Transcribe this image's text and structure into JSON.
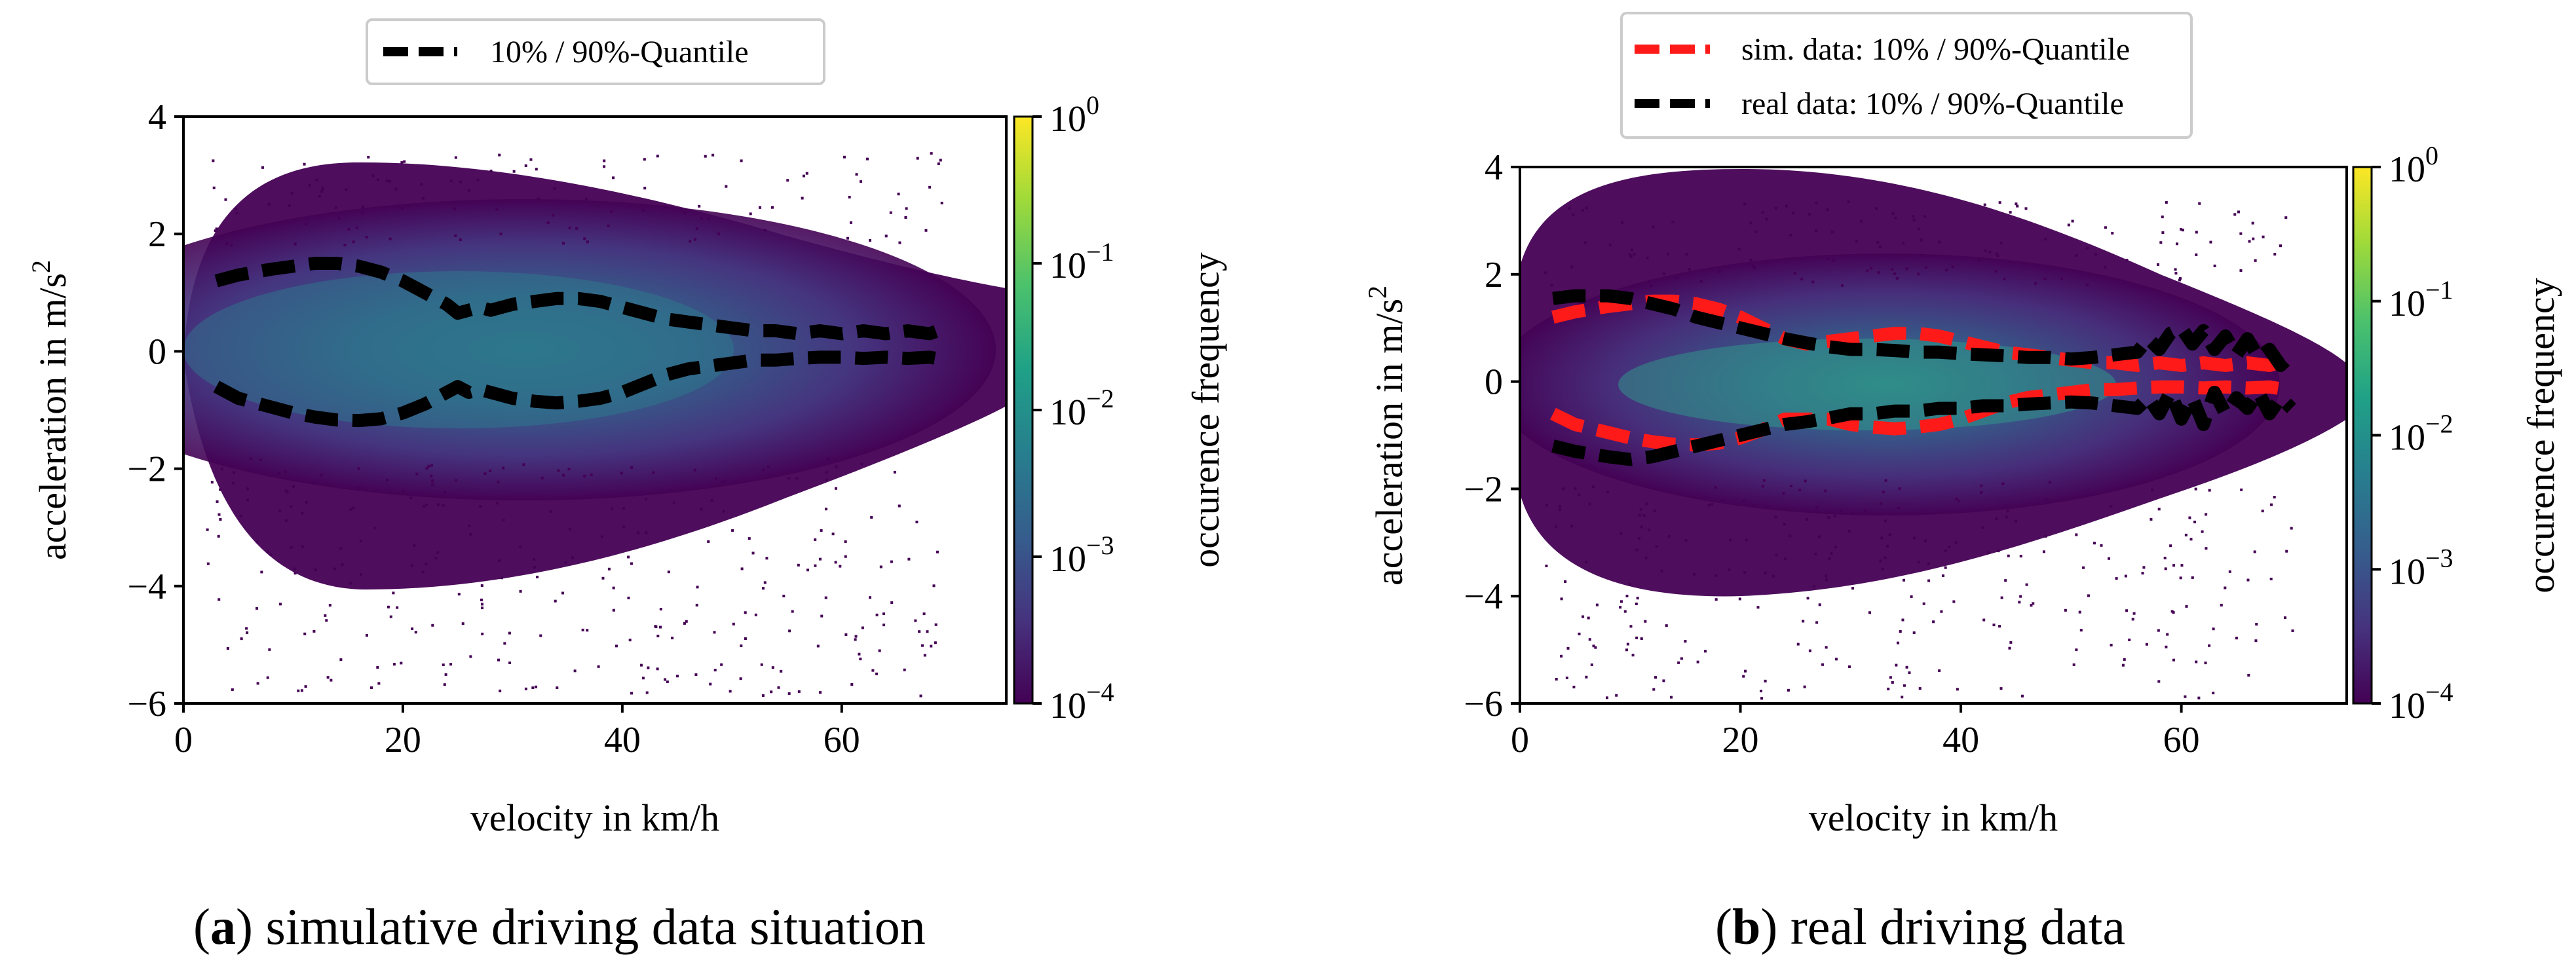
{
  "colors": {
    "background": "#ffffff",
    "quantile_sim": "#000000",
    "quantile_real": "#000000",
    "quantile_sim_red": "#ff1a1a",
    "cmap": [
      "#440154",
      "#46327e",
      "#365c8d",
      "#277f8e",
      "#1fa187",
      "#4ac16d",
      "#a0da39",
      "#fde725"
    ]
  },
  "captions": {
    "a_label": "a",
    "a_text": "simulative driving data situation",
    "b_label": "b",
    "b_text": "real driving data"
  },
  "chart_data": [
    {
      "type": "heatmap",
      "id": "a",
      "xlabel": "velocity in km/h",
      "ylabel": "acceleration in m/s",
      "ylabel_sup": "2",
      "xlim": [
        0,
        75
      ],
      "ylim": [
        -6,
        4
      ],
      "xticks": [
        0,
        20,
        40,
        60
      ],
      "xtick_labels": [
        "0",
        "20",
        "40",
        "60"
      ],
      "yticks": [
        -6,
        -4,
        -2,
        0,
        2,
        4
      ],
      "ytick_labels": [
        "−6",
        "−4",
        "−2",
        "0",
        "2",
        "4"
      ],
      "colorbar": {
        "label": "occurence frequency",
        "scale": "log",
        "tick_exponents": [
          0,
          -1,
          -2,
          -3,
          -4
        ],
        "tick_base": "10",
        "tick_labels": [
          "0",
          "−1",
          "−2",
          "−3",
          "−4"
        ]
      },
      "legend": {
        "placement": "top-center-outside",
        "entries": [
          "10% / 90%-Quantile"
        ]
      },
      "series": [
        {
          "name": "10% / 90%-Quantile",
          "color": "#000000",
          "style": "dashed",
          "role": "upper",
          "x": [
            3,
            5,
            8,
            10,
            12,
            14,
            16,
            18,
            20,
            22,
            24,
            25,
            26,
            27,
            28,
            30,
            32,
            34,
            36,
            38,
            40,
            42,
            44,
            46,
            48,
            50,
            52,
            54,
            56,
            58,
            60,
            62,
            64,
            66,
            68,
            69.5
          ],
          "y": [
            1.2,
            1.3,
            1.4,
            1.45,
            1.5,
            1.5,
            1.45,
            1.35,
            1.2,
            1.0,
            0.8,
            0.65,
            0.7,
            0.75,
            0.7,
            0.8,
            0.85,
            0.9,
            0.9,
            0.85,
            0.75,
            0.65,
            0.55,
            0.5,
            0.45,
            0.4,
            0.35,
            0.35,
            0.3,
            0.35,
            0.3,
            0.35,
            0.3,
            0.35,
            0.3,
            0.4
          ]
        },
        {
          "name": "10% / 90%-Quantile",
          "color": "#000000",
          "style": "dashed",
          "role": "lower",
          "x": [
            3,
            5,
            8,
            10,
            12,
            14,
            16,
            18,
            20,
            22,
            24,
            25,
            26,
            27,
            28,
            30,
            32,
            34,
            36,
            38,
            40,
            42,
            44,
            46,
            48,
            50,
            52,
            54,
            56,
            58,
            60,
            62,
            64,
            66,
            68,
            69.5
          ],
          "y": [
            -0.6,
            -0.8,
            -0.95,
            -1.05,
            -1.12,
            -1.17,
            -1.18,
            -1.15,
            -1.05,
            -0.9,
            -0.7,
            -0.6,
            -0.7,
            -0.65,
            -0.7,
            -0.8,
            -0.85,
            -0.88,
            -0.85,
            -0.8,
            -0.7,
            -0.55,
            -0.4,
            -0.3,
            -0.25,
            -0.2,
            -0.15,
            -0.15,
            -0.12,
            -0.1,
            -0.1,
            -0.12,
            -0.1,
            -0.12,
            -0.1,
            -0.15
          ]
        }
      ]
    },
    {
      "type": "heatmap",
      "id": "b",
      "xlabel": "velocity in km/h",
      "ylabel": "acceleration in m/s",
      "ylabel_sup": "2",
      "xlim": [
        0,
        75
      ],
      "ylim": [
        -6,
        4
      ],
      "xticks": [
        0,
        20,
        40,
        60
      ],
      "xtick_labels": [
        "0",
        "20",
        "40",
        "60"
      ],
      "yticks": [
        -6,
        -4,
        -2,
        0,
        2,
        4
      ],
      "ytick_labels": [
        "−6",
        "−4",
        "−2",
        "0",
        "2",
        "4"
      ],
      "colorbar": {
        "label": "occurence frequency",
        "scale": "log",
        "tick_exponents": [
          0,
          -1,
          -2,
          -3,
          -4
        ],
        "tick_base": "10",
        "tick_labels": [
          "0",
          "−1",
          "−2",
          "−3",
          "−4"
        ]
      },
      "legend": {
        "placement": "top-center-outside",
        "entries": [
          "sim. data: 10% / 90%-Quantile",
          "real data: 10% / 90%-Quantile"
        ]
      },
      "series": [
        {
          "name": "sim. data: 10% / 90%-Quantile",
          "color": "#ff1a1a",
          "style": "dashed",
          "role": "upper",
          "x": [
            3,
            5,
            8,
            10,
            12,
            14,
            16,
            18,
            20,
            22,
            24,
            26,
            28,
            30,
            32,
            34,
            36,
            38,
            40,
            42,
            44,
            46,
            48,
            50,
            52,
            54,
            56,
            58,
            60,
            62,
            64,
            66,
            68,
            69.5
          ],
          "y": [
            1.2,
            1.3,
            1.4,
            1.45,
            1.5,
            1.5,
            1.45,
            1.35,
            1.2,
            1.0,
            0.8,
            0.7,
            0.75,
            0.8,
            0.85,
            0.9,
            0.9,
            0.85,
            0.75,
            0.65,
            0.55,
            0.5,
            0.45,
            0.4,
            0.35,
            0.35,
            0.3,
            0.35,
            0.3,
            0.35,
            0.3,
            0.35,
            0.3,
            0.4
          ]
        },
        {
          "name": "sim. data: 10% / 90%-Quantile",
          "color": "#ff1a1a",
          "style": "dashed",
          "role": "lower",
          "x": [
            3,
            5,
            8,
            10,
            12,
            14,
            16,
            18,
            20,
            22,
            24,
            26,
            28,
            30,
            32,
            34,
            36,
            38,
            40,
            42,
            44,
            46,
            48,
            50,
            52,
            54,
            56,
            58,
            60,
            62,
            64,
            66,
            68,
            69.5
          ],
          "y": [
            -0.6,
            -0.8,
            -0.95,
            -1.05,
            -1.12,
            -1.17,
            -1.18,
            -1.15,
            -1.05,
            -0.9,
            -0.7,
            -0.7,
            -0.7,
            -0.8,
            -0.85,
            -0.88,
            -0.85,
            -0.8,
            -0.7,
            -0.55,
            -0.4,
            -0.3,
            -0.25,
            -0.2,
            -0.15,
            -0.15,
            -0.12,
            -0.1,
            -0.1,
            -0.12,
            -0.1,
            -0.12,
            -0.1,
            -0.15
          ]
        },
        {
          "name": "real data: 10% / 90%-Quantile",
          "color": "#000000",
          "style": "dashed",
          "role": "upper",
          "x": [
            3,
            5,
            8,
            10,
            12,
            14,
            16,
            18,
            20,
            22,
            24,
            26,
            28,
            30,
            32,
            34,
            36,
            38,
            40,
            42,
            44,
            46,
            48,
            50,
            52,
            54,
            56,
            57,
            58,
            59,
            60,
            61,
            62,
            63,
            64,
            65,
            66,
            67,
            68,
            69,
            70
          ],
          "y": [
            1.55,
            1.6,
            1.6,
            1.55,
            1.45,
            1.35,
            1.2,
            1.1,
            1.0,
            0.9,
            0.8,
            0.72,
            0.65,
            0.6,
            0.6,
            0.58,
            0.55,
            0.55,
            0.52,
            0.5,
            0.48,
            0.45,
            0.45,
            0.42,
            0.45,
            0.5,
            0.55,
            0.8,
            0.6,
            0.9,
            1.0,
            0.7,
            0.95,
            0.6,
            0.85,
            0.5,
            0.8,
            0.45,
            0.6,
            0.3,
            0.5
          ]
        },
        {
          "name": "real data: 10% / 90%-Quantile",
          "color": "#000000",
          "style": "dashed",
          "role": "lower",
          "x": [
            3,
            5,
            8,
            10,
            12,
            14,
            16,
            18,
            20,
            22,
            24,
            26,
            28,
            30,
            32,
            34,
            36,
            38,
            40,
            42,
            44,
            46,
            48,
            50,
            52,
            54,
            56,
            57,
            58,
            59,
            60,
            61,
            62,
            63,
            64,
            65,
            66,
            67,
            68,
            69,
            70
          ],
          "y": [
            -1.2,
            -1.3,
            -1.4,
            -1.45,
            -1.4,
            -1.3,
            -1.2,
            -1.1,
            -1.0,
            -0.9,
            -0.8,
            -0.75,
            -0.68,
            -0.6,
            -0.6,
            -0.55,
            -0.55,
            -0.5,
            -0.5,
            -0.45,
            -0.45,
            -0.42,
            -0.4,
            -0.38,
            -0.4,
            -0.45,
            -0.5,
            -0.3,
            -0.6,
            -0.2,
            -0.7,
            -0.3,
            -0.8,
            -0.2,
            -0.6,
            -0.3,
            -0.5,
            -0.2,
            -0.6,
            -0.3,
            -0.5
          ]
        }
      ]
    }
  ]
}
